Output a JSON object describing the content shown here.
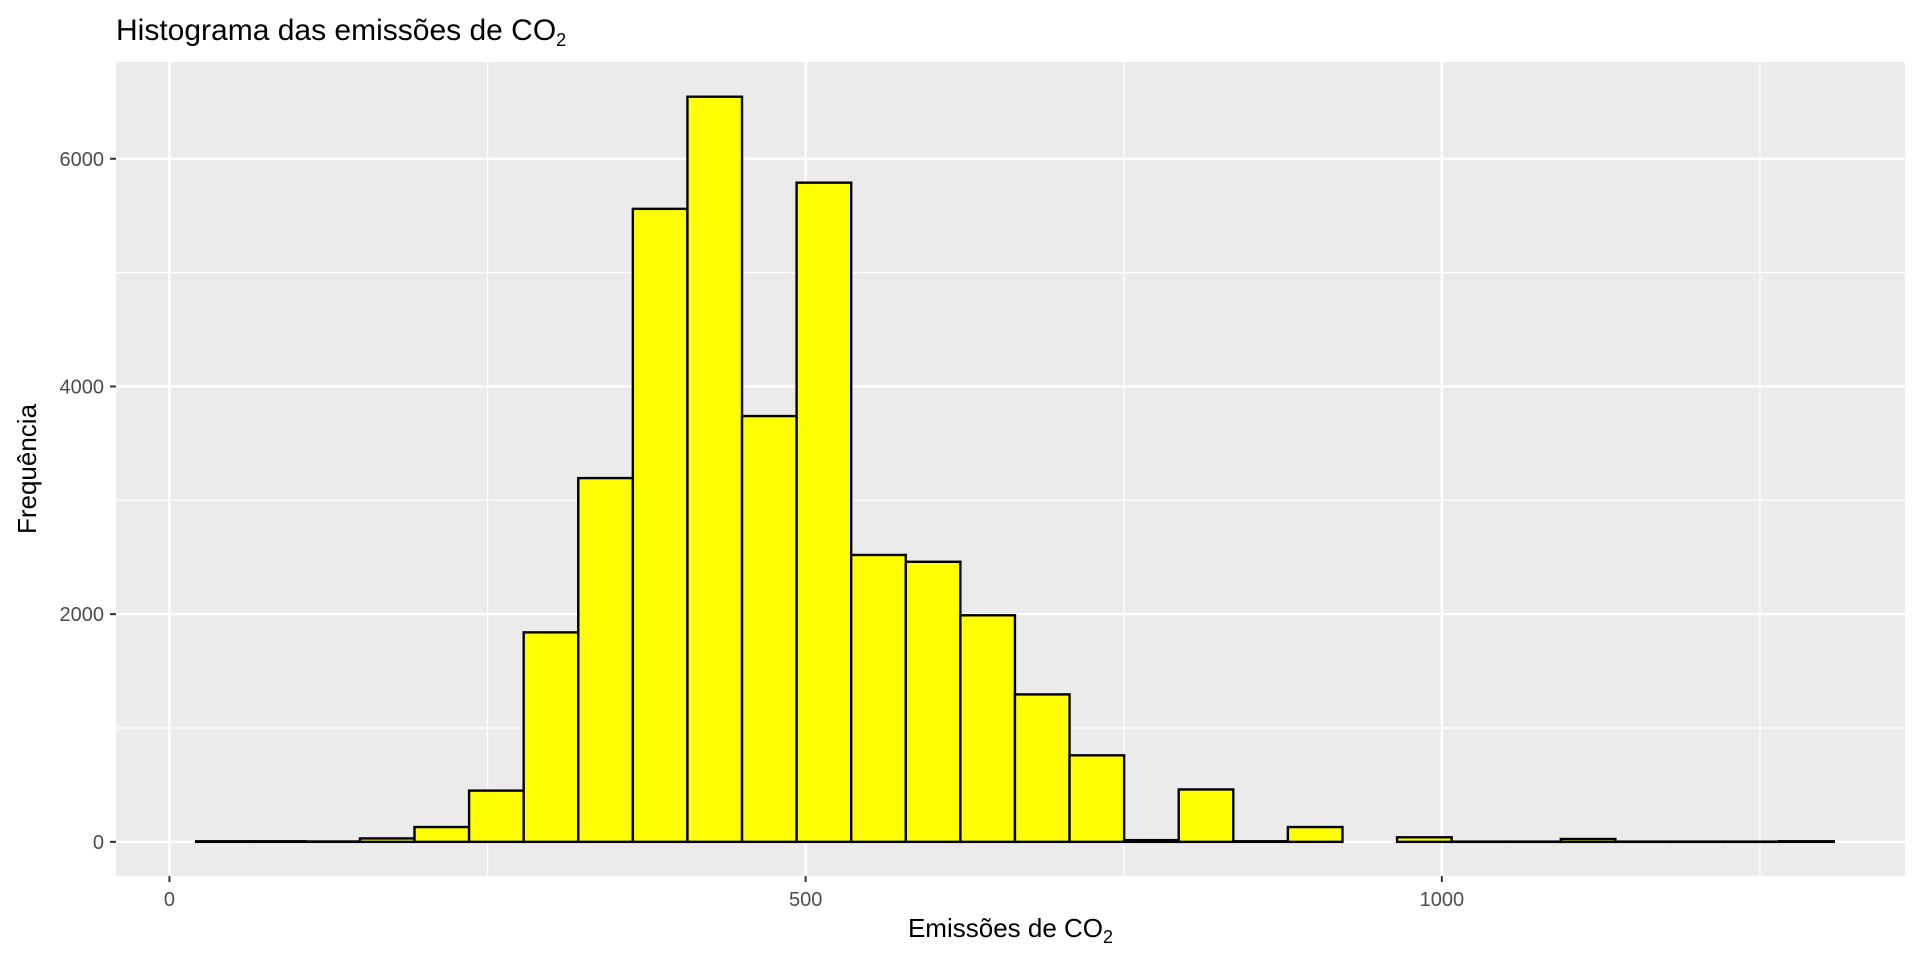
{
  "chart_data": {
    "type": "bar",
    "title": {
      "main": "Histograma das emissões de CO",
      "sub": "2"
    },
    "xlabel": {
      "main": "Emissões de CO",
      "sub": "2"
    },
    "ylabel": "Frequência",
    "xlim": [
      -42,
      1364
    ],
    "ylim": [
      -300,
      6850
    ],
    "x_ticks": [
      0,
      500,
      1000
    ],
    "x_tick_labels": [
      "0",
      "500",
      "1000"
    ],
    "y_ticks": [
      0,
      2000,
      4000,
      6000
    ],
    "y_tick_labels": [
      "0",
      "2000",
      "4000",
      "6000"
    ],
    "grid": true,
    "legend": "none",
    "bin_width": 42.9,
    "first_bin_start": 21,
    "bins": [
      {
        "x0": 21.0,
        "x1": 63.9,
        "count": 5
      },
      {
        "x0": 63.9,
        "x1": 106.8,
        "count": 5
      },
      {
        "x0": 106.8,
        "x1": 149.7,
        "count": 3
      },
      {
        "x0": 149.7,
        "x1": 192.6,
        "count": 30
      },
      {
        "x0": 192.6,
        "x1": 235.5,
        "count": 130
      },
      {
        "x0": 235.5,
        "x1": 278.4,
        "count": 450
      },
      {
        "x0": 278.4,
        "x1": 321.3,
        "count": 1840
      },
      {
        "x0": 321.3,
        "x1": 364.2,
        "count": 3195
      },
      {
        "x0": 364.2,
        "x1": 407.1,
        "count": 5560
      },
      {
        "x0": 407.1,
        "x1": 450.0,
        "count": 6545
      },
      {
        "x0": 450.0,
        "x1": 492.9,
        "count": 3740
      },
      {
        "x0": 492.9,
        "x1": 535.8,
        "count": 5790
      },
      {
        "x0": 535.8,
        "x1": 578.7,
        "count": 2520
      },
      {
        "x0": 578.7,
        "x1": 621.6,
        "count": 2460
      },
      {
        "x0": 621.6,
        "x1": 664.5,
        "count": 1990
      },
      {
        "x0": 664.5,
        "x1": 707.4,
        "count": 1295
      },
      {
        "x0": 707.4,
        "x1": 750.3,
        "count": 760
      },
      {
        "x0": 750.3,
        "x1": 793.2,
        "count": 15
      },
      {
        "x0": 793.2,
        "x1": 836.1,
        "count": 460
      },
      {
        "x0": 836.1,
        "x1": 879.0,
        "count": 5
      },
      {
        "x0": 879.0,
        "x1": 921.9,
        "count": 130
      },
      {
        "x0": 921.9,
        "x1": 964.8,
        "count": 0
      },
      {
        "x0": 964.8,
        "x1": 1007.7,
        "count": 40
      },
      {
        "x0": 1007.7,
        "x1": 1050.6,
        "count": 2
      },
      {
        "x0": 1050.6,
        "x1": 1093.5,
        "count": 2
      },
      {
        "x0": 1093.5,
        "x1": 1136.4,
        "count": 25
      },
      {
        "x0": 1136.4,
        "x1": 1179.3,
        "count": 2
      },
      {
        "x0": 1179.3,
        "x1": 1222.2,
        "count": 2
      },
      {
        "x0": 1222.2,
        "x1": 1265.1,
        "count": 2
      },
      {
        "x0": 1265.1,
        "x1": 1308.0,
        "count": 5
      }
    ],
    "colors": {
      "bar_fill": "#ffff00",
      "bar_stroke": "#000000",
      "panel_background": "#ebebeb",
      "grid": "#ffffff",
      "tick_text": "#4d4d4d"
    }
  }
}
